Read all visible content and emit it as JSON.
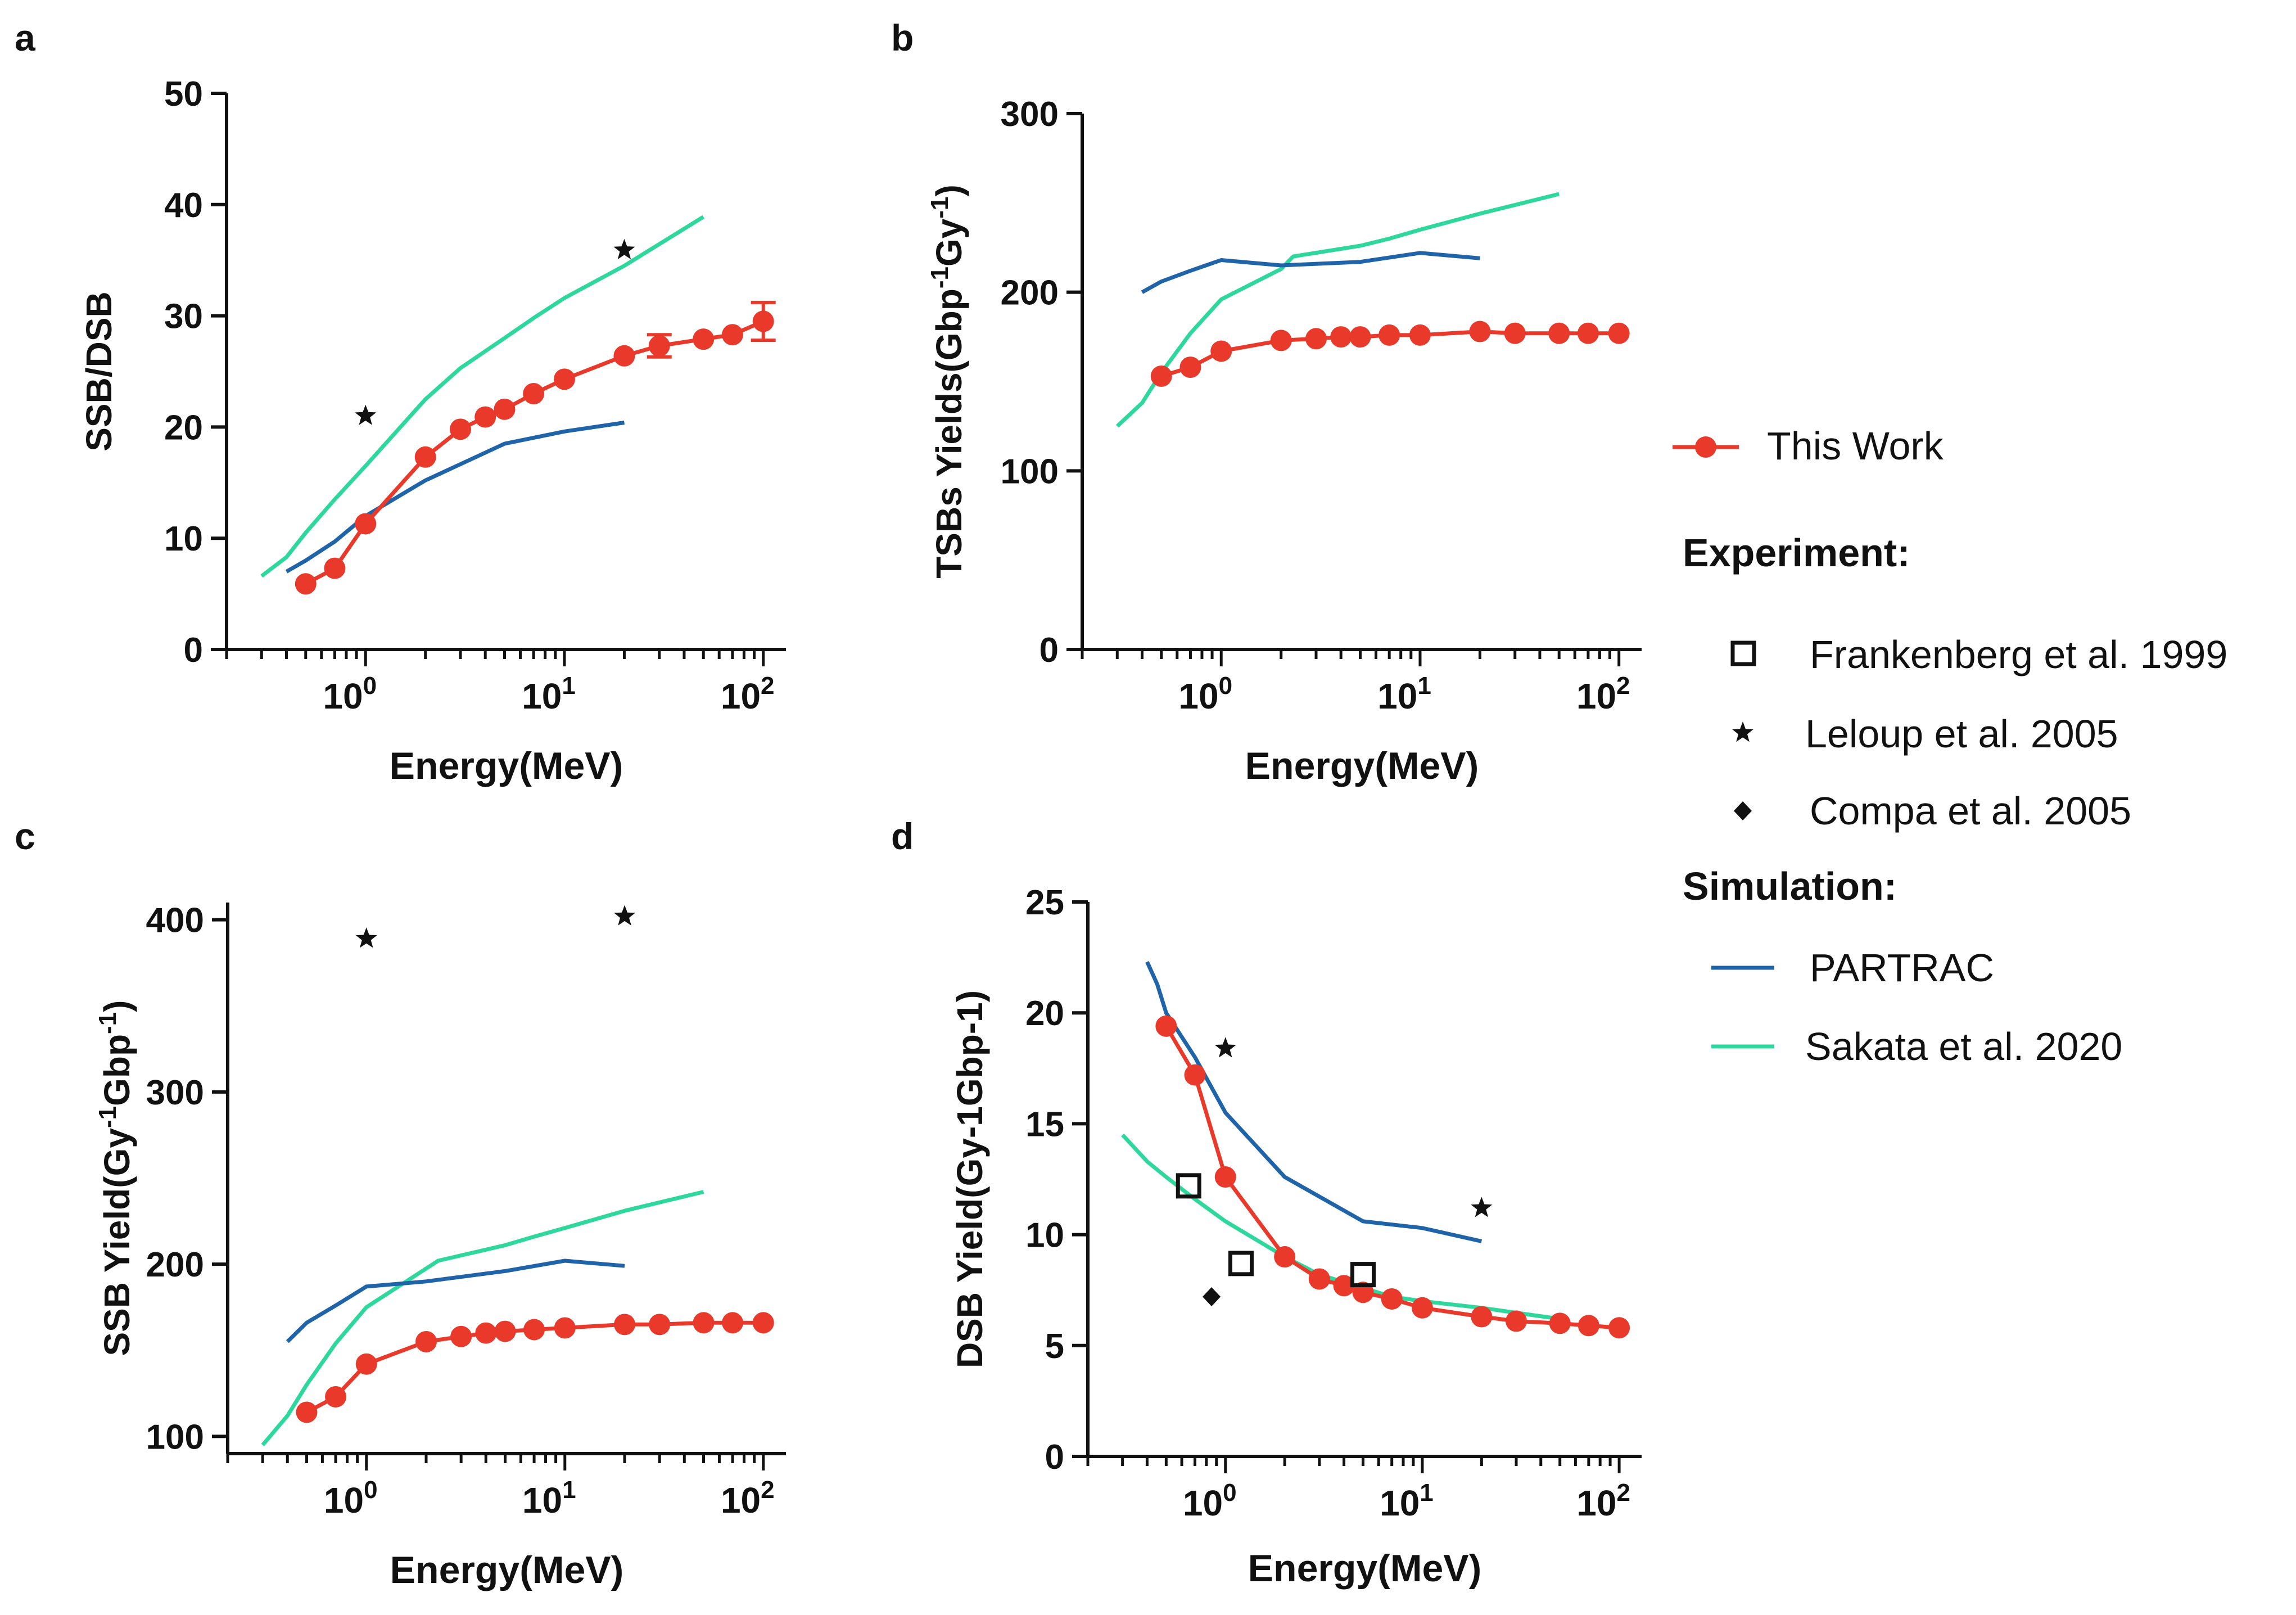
{
  "figure": {
    "panel_letters": [
      "a",
      "b",
      "c",
      "d"
    ],
    "xlabel": "Energy(MeV)",
    "xtick_base": "10",
    "xtick_exponents": [
      "0",
      "1",
      "2"
    ]
  },
  "legend": {
    "this_work": "This Work",
    "experiment_header": "Experiment:",
    "frankenberg": "Frankenberg et al. 1999",
    "leloup": "Leloup et al. 2005",
    "compa": "Compa et al. 2005",
    "simulation_header": "Simulation:",
    "partrac": "PARTRAC",
    "sakata": "Sakata et al. 2020"
  },
  "colors": {
    "this_work": "#e8392b",
    "partrac": "#1f64a8",
    "sakata": "#2ed89c",
    "experiment": "#111111"
  },
  "chart_data": [
    {
      "panel": "a",
      "type": "line",
      "xscale": "log",
      "xlim": [
        0.2,
        130
      ],
      "ylim": [
        0,
        50
      ],
      "yticks": [
        "0",
        "10",
        "20",
        "30",
        "40",
        "50"
      ],
      "ylabel": "SSB/DSB",
      "xlabel": "Energy(MeV)",
      "series": [
        {
          "name": "This Work",
          "x": [
            0.5,
            0.7,
            1,
            2,
            3,
            4,
            5,
            7,
            10,
            20,
            30,
            50,
            70,
            100
          ],
          "y": [
            5.9,
            7.3,
            11.3,
            17.3,
            19.8,
            20.9,
            21.6,
            23.0,
            24.3,
            26.4,
            27.3,
            27.9,
            28.3,
            29.5
          ],
          "yerr": [
            0,
            0,
            0,
            0,
            0,
            0,
            0,
            0,
            0,
            0,
            1.0,
            0,
            0,
            1.7
          ]
        },
        {
          "name": "PARTRAC",
          "x": [
            0.4,
            0.5,
            0.7,
            1,
            2,
            5,
            10,
            20
          ],
          "y": [
            7.0,
            8.0,
            9.7,
            12.0,
            15.2,
            18.5,
            19.6,
            20.4
          ]
        },
        {
          "name": "Sakata et al. 2020",
          "x": [
            0.3,
            0.4,
            0.5,
            0.7,
            1,
            2,
            3,
            5,
            7,
            10,
            20,
            50
          ],
          "y": [
            6.6,
            8.3,
            10.5,
            13.5,
            16.5,
            22.5,
            25.3,
            28.0,
            29.8,
            31.6,
            34.5,
            38.9
          ]
        },
        {
          "name": "Leloup et al. 2005",
          "x": [
            1,
            20
          ],
          "y": [
            21.0,
            35.9
          ]
        }
      ]
    },
    {
      "panel": "b",
      "type": "line",
      "xscale": "log",
      "xlim": [
        0.2,
        130
      ],
      "ylim": [
        0,
        300
      ],
      "yticks": [
        "0",
        "100",
        "200",
        "300"
      ],
      "ylabel": "TSBs Yields(Gbp-1Gy-1)",
      "ylabel_parts": [
        "TSBs Yields(Gbp",
        "-1",
        "Gy",
        "-1",
        ")"
      ],
      "xlabel": "Energy(MeV)",
      "series": [
        {
          "name": "This Work",
          "x": [
            0.5,
            0.7,
            1,
            2,
            3,
            4,
            5,
            7,
            10,
            20,
            30,
            50,
            70,
            100
          ],
          "y": [
            153,
            158,
            167,
            173,
            174,
            175,
            175,
            176,
            176,
            178,
            177,
            177,
            177,
            177
          ]
        },
        {
          "name": "PARTRAC",
          "x": [
            0.4,
            0.5,
            0.7,
            1,
            2,
            5,
            10,
            20
          ],
          "y": [
            200,
            206,
            212,
            218,
            215,
            217,
            222,
            219
          ]
        },
        {
          "name": "Sakata et al. 2020",
          "x": [
            0.3,
            0.4,
            0.5,
            0.7,
            1,
            2,
            2.3,
            5,
            7,
            10,
            20,
            50
          ],
          "y": [
            125,
            138,
            155,
            177,
            196,
            213,
            220,
            226,
            230,
            235,
            244,
            255
          ]
        }
      ]
    },
    {
      "panel": "c",
      "type": "line",
      "xscale": "log",
      "xlim": [
        0.2,
        130
      ],
      "ylim": [
        90,
        410
      ],
      "yticks": [
        "100",
        "200",
        "300",
        "400"
      ],
      "ylabel": "SSB Yield(Gy-1Gbp-1)",
      "ylabel_parts": [
        "SSB Yield(Gy",
        "-1",
        "Gbp",
        "-1",
        ")"
      ],
      "xlabel": "Energy(MeV)",
      "series": [
        {
          "name": "This Work",
          "x": [
            0.5,
            0.7,
            1,
            2,
            3,
            4,
            5,
            7,
            10,
            20,
            30,
            50,
            70,
            100
          ],
          "y": [
            114,
            123,
            142,
            155,
            158,
            160,
            161,
            162,
            163,
            165,
            165,
            166,
            166,
            166
          ]
        },
        {
          "name": "PARTRAC",
          "x": [
            0.4,
            0.5,
            0.7,
            1,
            2,
            5,
            10,
            20
          ],
          "y": [
            155,
            166,
            176,
            187,
            190,
            196,
            202,
            199
          ]
        },
        {
          "name": "Sakata et al. 2020",
          "x": [
            0.3,
            0.4,
            0.5,
            0.7,
            1,
            2.3,
            5,
            7,
            10,
            20,
            50
          ],
          "y": [
            95,
            112,
            130,
            154,
            175,
            202,
            211,
            216,
            221,
            231,
            242
          ]
        },
        {
          "name": "Leloup et al. 2005",
          "x": [
            1,
            20
          ],
          "y": [
            389,
            402
          ]
        }
      ]
    },
    {
      "panel": "d",
      "type": "line",
      "xscale": "log",
      "xlim": [
        0.2,
        130
      ],
      "ylim": [
        0,
        25
      ],
      "yticks": [
        "0",
        "5",
        "10",
        "15",
        "20",
        "25"
      ],
      "ylabel": "DSB Yield(Gy-1Gbp-1)",
      "xlabel": "Energy(MeV)",
      "series": [
        {
          "name": "This Work",
          "x": [
            0.5,
            0.7,
            1,
            2,
            3,
            4,
            5,
            7,
            10,
            20,
            30,
            50,
            70,
            100
          ],
          "y": [
            19.4,
            17.2,
            12.6,
            9.0,
            8.0,
            7.7,
            7.4,
            7.1,
            6.7,
            6.3,
            6.1,
            6.0,
            5.9,
            5.8
          ]
        },
        {
          "name": "PARTRAC",
          "x": [
            0.4,
            0.45,
            0.5,
            0.7,
            1,
            2,
            5,
            10,
            20
          ],
          "y": [
            22.3,
            21.3,
            20.0,
            18.0,
            15.5,
            12.6,
            10.6,
            10.3,
            9.7
          ]
        },
        {
          "name": "Sakata et al. 2020",
          "x": [
            0.3,
            0.4,
            0.5,
            0.7,
            1,
            2,
            3,
            5,
            7,
            10,
            20,
            50
          ],
          "y": [
            14.5,
            13.3,
            12.6,
            11.6,
            10.6,
            9.0,
            8.2,
            7.6,
            7.2,
            7.0,
            6.7,
            6.2
          ]
        },
        {
          "name": "Frankenberg et al. 1999",
          "x": [
            0.65,
            1.2,
            5
          ],
          "y": [
            12.2,
            8.7,
            8.2
          ]
        },
        {
          "name": "Leloup et al. 2005",
          "x": [
            1,
            20
          ],
          "y": [
            18.4,
            11.2
          ]
        },
        {
          "name": "Compa et al. 2005",
          "x": [
            0.85
          ],
          "y": [
            7.2
          ]
        }
      ]
    }
  ]
}
